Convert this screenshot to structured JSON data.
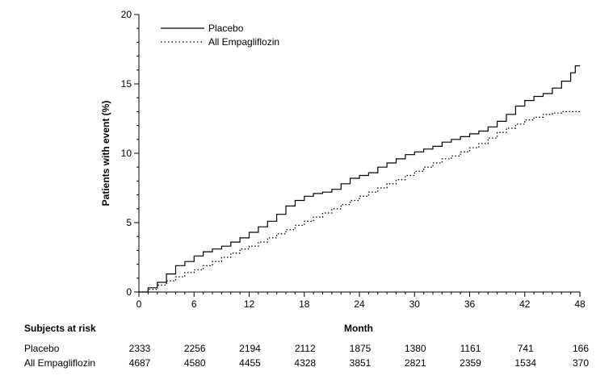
{
  "chart_data": {
    "type": "line",
    "ylabel": "Patients with event (%)",
    "xlabel": "Month",
    "xlim": [
      0,
      48
    ],
    "ylim": [
      0,
      20
    ],
    "x_ticks": [
      0,
      6,
      12,
      18,
      24,
      30,
      36,
      42,
      48
    ],
    "y_ticks": [
      0,
      5,
      10,
      15,
      20
    ],
    "legend_position": "top-left",
    "series": [
      {
        "name": "Placebo",
        "line_style": "solid",
        "color": "#000000",
        "points": [
          [
            0,
            0
          ],
          [
            1,
            0.3
          ],
          [
            2,
            0.7
          ],
          [
            3,
            1.3
          ],
          [
            4,
            1.9
          ],
          [
            5,
            2.2
          ],
          [
            6,
            2.6
          ],
          [
            7,
            2.9
          ],
          [
            8,
            3.1
          ],
          [
            9,
            3.3
          ],
          [
            10,
            3.6
          ],
          [
            11,
            3.9
          ],
          [
            12,
            4.3
          ],
          [
            13,
            4.7
          ],
          [
            14,
            5.1
          ],
          [
            15,
            5.6
          ],
          [
            16,
            6.2
          ],
          [
            17,
            6.6
          ],
          [
            18,
            6.9
          ],
          [
            19,
            7.1
          ],
          [
            20,
            7.2
          ],
          [
            21,
            7.4
          ],
          [
            22,
            7.8
          ],
          [
            23,
            8.2
          ],
          [
            24,
            8.4
          ],
          [
            25,
            8.6
          ],
          [
            26,
            9.0
          ],
          [
            27,
            9.3
          ],
          [
            28,
            9.6
          ],
          [
            29,
            9.9
          ],
          [
            30,
            10.1
          ],
          [
            31,
            10.3
          ],
          [
            32,
            10.5
          ],
          [
            33,
            10.8
          ],
          [
            34,
            11.0
          ],
          [
            35,
            11.2
          ],
          [
            36,
            11.4
          ],
          [
            37,
            11.6
          ],
          [
            38,
            11.9
          ],
          [
            39,
            12.3
          ],
          [
            40,
            12.8
          ],
          [
            41,
            13.4
          ],
          [
            42,
            13.8
          ],
          [
            43,
            14.1
          ],
          [
            44,
            14.3
          ],
          [
            45,
            14.7
          ],
          [
            46,
            15.2
          ],
          [
            47,
            15.8
          ],
          [
            47.5,
            16.3
          ],
          [
            48,
            16.3
          ]
        ]
      },
      {
        "name": "All Empagliflozin",
        "line_style": "dotted",
        "color": "#000000",
        "points": [
          [
            0,
            0
          ],
          [
            1,
            0.2
          ],
          [
            2,
            0.5
          ],
          [
            3,
            0.8
          ],
          [
            4,
            1.1
          ],
          [
            5,
            1.4
          ],
          [
            6,
            1.6
          ],
          [
            7,
            1.9
          ],
          [
            8,
            2.2
          ],
          [
            9,
            2.5
          ],
          [
            10,
            2.8
          ],
          [
            11,
            3.1
          ],
          [
            12,
            3.3
          ],
          [
            13,
            3.6
          ],
          [
            14,
            3.9
          ],
          [
            15,
            4.2
          ],
          [
            16,
            4.5
          ],
          [
            17,
            4.8
          ],
          [
            18,
            5.1
          ],
          [
            19,
            5.4
          ],
          [
            20,
            5.7
          ],
          [
            21,
            6.0
          ],
          [
            22,
            6.3
          ],
          [
            23,
            6.6
          ],
          [
            24,
            6.9
          ],
          [
            25,
            7.2
          ],
          [
            26,
            7.5
          ],
          [
            27,
            7.8
          ],
          [
            28,
            8.1
          ],
          [
            29,
            8.4
          ],
          [
            30,
            8.7
          ],
          [
            31,
            9.0
          ],
          [
            32,
            9.3
          ],
          [
            33,
            9.6
          ],
          [
            34,
            9.8
          ],
          [
            35,
            10.1
          ],
          [
            36,
            10.4
          ],
          [
            37,
            10.7
          ],
          [
            38,
            11.1
          ],
          [
            39,
            11.5
          ],
          [
            40,
            11.8
          ],
          [
            41,
            12.1
          ],
          [
            42,
            12.4
          ],
          [
            43,
            12.6
          ],
          [
            44,
            12.8
          ],
          [
            45,
            12.9
          ],
          [
            46,
            13.0
          ],
          [
            47,
            13.0
          ],
          [
            48,
            13.0
          ]
        ]
      }
    ],
    "risk_table": {
      "title": "Subjects at risk",
      "months": [
        0,
        6,
        12,
        18,
        24,
        30,
        36,
        42,
        48
      ],
      "rows": [
        {
          "name": "Placebo",
          "values": [
            "2333",
            "2256",
            "2194",
            "2112",
            "1875",
            "1380",
            "1161",
            "741",
            "166"
          ]
        },
        {
          "name": "All Empagliflozin",
          "values": [
            "4687",
            "4580",
            "4455",
            "4328",
            "3851",
            "2821",
            "2359",
            "1534",
            "370"
          ]
        }
      ]
    }
  }
}
